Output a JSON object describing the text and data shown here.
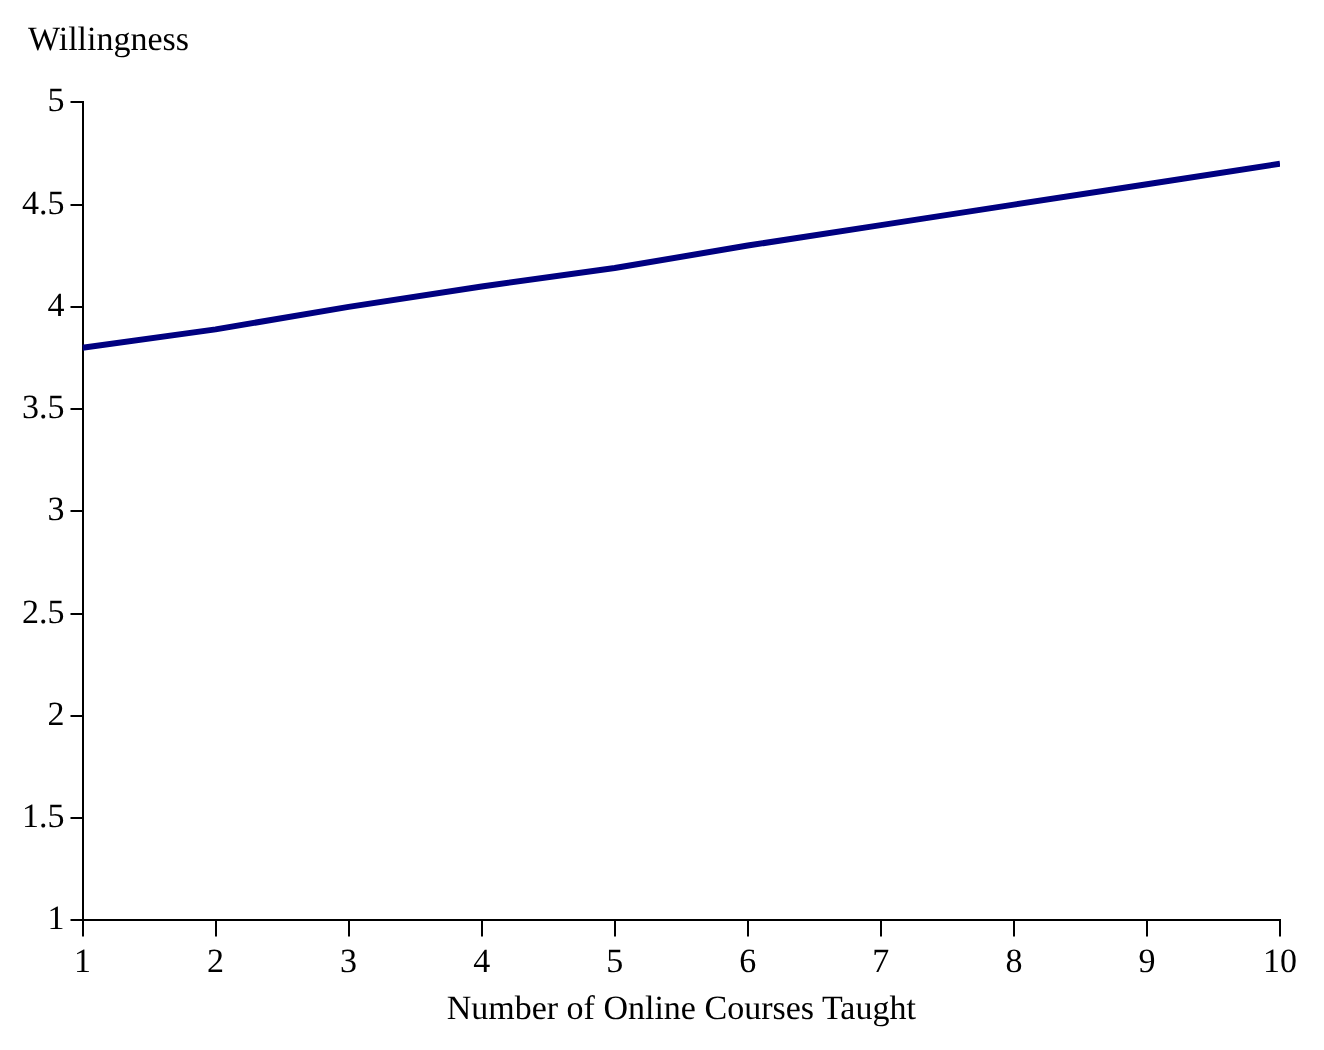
{
  "chart_data": {
    "type": "line",
    "xlabel": "Number of Online Courses Taught",
    "ylabel": "Willingness",
    "x": [
      1,
      2,
      3,
      4,
      5,
      6,
      7,
      8,
      9,
      10
    ],
    "series": [
      {
        "color": "#000080",
        "values": [
          3.8,
          3.89,
          4.0,
          4.1,
          4.19,
          4.3,
          4.4,
          4.5,
          4.6,
          4.7
        ]
      }
    ],
    "xlim": [
      1,
      10
    ],
    "xticks": [
      1,
      2,
      3,
      4,
      5,
      6,
      7,
      8,
      9,
      10
    ],
    "ylim": [
      1,
      5
    ],
    "yticks": [
      1,
      1.5,
      2,
      2.5,
      3,
      3.5,
      4,
      4.5,
      5
    ],
    "grid": false,
    "legend": false,
    "marker": "none",
    "line_style": "solid"
  }
}
